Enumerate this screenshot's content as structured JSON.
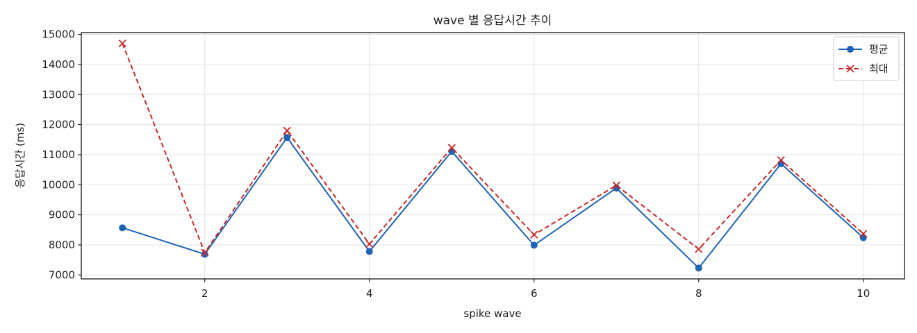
{
  "chart_data": {
    "type": "line",
    "title": "wave 별 응답시간 추이",
    "xlabel": "spike wave",
    "ylabel": "응답시간 (ms)",
    "x": [
      1,
      2,
      3,
      4,
      5,
      6,
      7,
      8,
      9,
      10
    ],
    "xlim": [
      0.5,
      10.5
    ],
    "ylim": [
      6870,
      15060
    ],
    "xticks": [
      2,
      4,
      6,
      8,
      10
    ],
    "yticks": [
      7000,
      8000,
      9000,
      10000,
      11000,
      12000,
      13000,
      14000,
      15000
    ],
    "grid": true,
    "legend_position": "top-right",
    "series": [
      {
        "name": "평균",
        "values": [
          8570,
          7690,
          11570,
          7780,
          11110,
          7990,
          9890,
          7230,
          10700,
          8240
        ],
        "color": "#1f63b5",
        "marker": "circle",
        "line_style": "solid"
      },
      {
        "name": "최대",
        "values": [
          14700,
          7740,
          11800,
          8030,
          11230,
          8340,
          9980,
          7860,
          10820,
          8370
        ],
        "color": "#c62828",
        "marker": "x",
        "line_style": "dashed"
      }
    ]
  }
}
